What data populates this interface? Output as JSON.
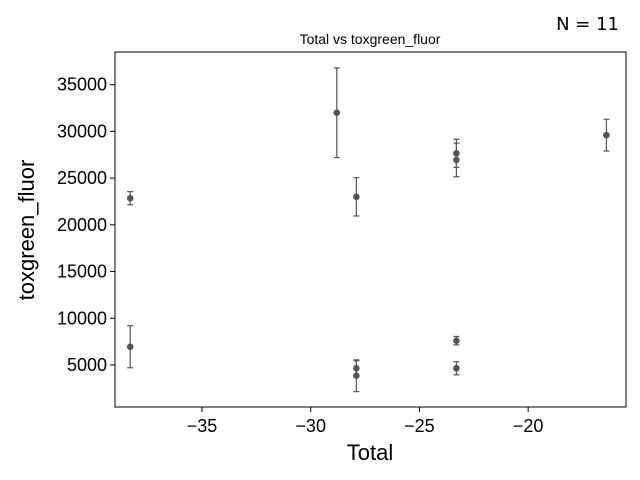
{
  "annotation": "N = 11",
  "chart_data": {
    "type": "scatter",
    "title": "Total vs toxgreen_fluor",
    "xlabel": "Total",
    "ylabel": "toxgreen_fluor",
    "xlim": [
      -39.0,
      -15.5
    ],
    "ylim": [
      500,
      38500
    ],
    "xticks": [
      -35,
      -30,
      -25,
      -20
    ],
    "xtick_labels": [
      "−35",
      "−30",
      "−25",
      "−20"
    ],
    "yticks": [
      5000,
      10000,
      15000,
      20000,
      25000,
      30000,
      35000
    ],
    "ytick_labels": [
      "5000",
      "10000",
      "15000",
      "20000",
      "25000",
      "30000",
      "35000"
    ],
    "grid": false,
    "marker_color": "#555555",
    "points": [
      {
        "x": -38.3,
        "y": 22850,
        "yerr": 700
      },
      {
        "x": -38.3,
        "y": 6950,
        "yerr": 2250
      },
      {
        "x": -28.8,
        "y": 32000,
        "yerr": 4800
      },
      {
        "x": -27.9,
        "y": 23000,
        "yerr": 2050
      },
      {
        "x": -27.9,
        "y": 4650,
        "yerr": 800
      },
      {
        "x": -27.9,
        "y": 3850,
        "yerr": 1700
      },
      {
        "x": -23.3,
        "y": 27650,
        "yerr": 1500
      },
      {
        "x": -23.3,
        "y": 26950,
        "yerr": 1800
      },
      {
        "x": -23.3,
        "y": 7600,
        "yerr": 450
      },
      {
        "x": -23.3,
        "y": 4650,
        "yerr": 700
      },
      {
        "x": -16.4,
        "y": 29600,
        "yerr": 1700
      }
    ]
  }
}
